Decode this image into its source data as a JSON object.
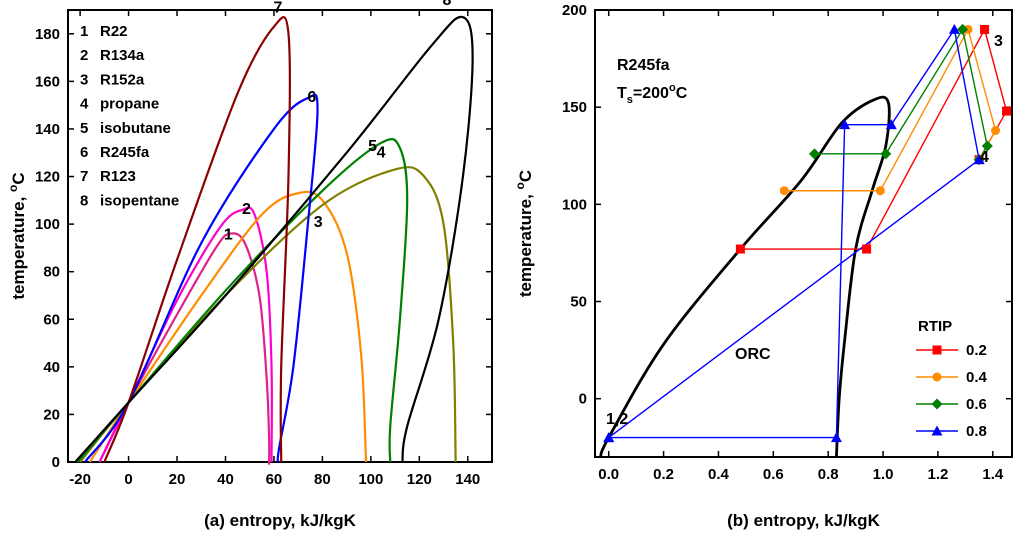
{
  "chart_data": [
    {
      "type": "line",
      "xlabel": "(a) entropy, kJ/kgK",
      "ylabel": "temperature, °C",
      "xlim": [
        -25,
        150
      ],
      "ylim": [
        0,
        190
      ],
      "xticks": [
        -20,
        0,
        20,
        40,
        60,
        80,
        100,
        120,
        140
      ],
      "yticks": [
        0,
        20,
        40,
        60,
        80,
        100,
        120,
        140,
        160,
        180
      ],
      "grid": false,
      "legend": [
        {
          "num": "1",
          "name": "R22"
        },
        {
          "num": "2",
          "name": "R134a"
        },
        {
          "num": "3",
          "name": "R152a"
        },
        {
          "num": "4",
          "name": "propane"
        },
        {
          "num": "5",
          "name": "isobutane"
        },
        {
          "num": "6",
          "name": "R245fa"
        },
        {
          "num": "7",
          "name": "R123"
        },
        {
          "num": "8",
          "name": "isopentane"
        }
      ],
      "series": [
        {
          "label": "1",
          "color": "#e0218a",
          "x": [
            -12,
            0,
            20,
            36,
            42,
            48,
            54,
            57,
            58,
            58,
            58
          ],
          "y": [
            0,
            25,
            62,
            90,
            96,
            92,
            70,
            35,
            10,
            0,
            0
          ]
        },
        {
          "label": "2",
          "color": "#ff00cc",
          "x": [
            -12,
            0,
            20,
            38,
            47,
            52,
            57,
            59,
            59
          ],
          "y": [
            0,
            25,
            68,
            99,
            106,
            104,
            80,
            40,
            0
          ]
        },
        {
          "label": "3",
          "color": "#ff8c00",
          "x": [
            -16,
            0,
            30,
            55,
            70,
            80,
            90,
            96,
            98
          ],
          "y": [
            0,
            25,
            70,
            104,
            113,
            110,
            88,
            45,
            0
          ]
        },
        {
          "label": "4",
          "color": "#808000",
          "x": [
            -20,
            0,
            40,
            80,
            110,
            122,
            130,
            134,
            135
          ],
          "y": [
            0,
            25,
            70,
            108,
            123,
            120,
            100,
            50,
            0
          ]
        },
        {
          "label": "5",
          "color": "#008000",
          "x": [
            -21,
            0,
            40,
            80,
            104,
            112,
            115,
            112,
            108,
            108
          ],
          "y": [
            0,
            25,
            72,
            114,
            134,
            132,
            110,
            60,
            15,
            0
          ]
        },
        {
          "label": "6",
          "color": "#0000ff",
          "x": [
            -18,
            0,
            30,
            60,
            74,
            78,
            74,
            68,
            62,
            62
          ],
          "y": [
            0,
            25,
            92,
            140,
            153,
            148,
            100,
            40,
            5,
            0
          ]
        },
        {
          "label": "7",
          "color": "#8b0000",
          "x": [
            -10,
            0,
            20,
            45,
            60,
            66,
            66,
            63,
            63
          ],
          "y": [
            0,
            25,
            85,
            155,
            183,
            180,
            120,
            40,
            0
          ]
        },
        {
          "label": "8",
          "color": "#000000",
          "x": [
            -22,
            0,
            40,
            90,
            125,
            138,
            142,
            138,
            128,
            115,
            113
          ],
          "y": [
            0,
            25,
            70,
            130,
            175,
            187,
            170,
            120,
            60,
            15,
            0
          ]
        }
      ]
    },
    {
      "type": "line",
      "xlabel": "(b) entropy, kJ/kgK",
      "ylabel": "temperature, °C",
      "xlim": [
        -0.05,
        1.47
      ],
      "ylim": [
        -30,
        200
      ],
      "xticks": [
        0.0,
        0.2,
        0.4,
        0.6,
        0.8,
        1.0,
        1.2,
        1.4
      ],
      "yticks": [
        0,
        50,
        100,
        150,
        200
      ],
      "grid": false,
      "annotations": [
        "R245fa",
        "T",
        "s",
        "=200",
        "o",
        "C",
        "ORC",
        "1,2",
        "3",
        "4"
      ],
      "legend_title": "RTIP",
      "dome": {
        "color": "#000000",
        "x": [
          -0.03,
          0.0,
          0.2,
          0.48,
          0.7,
          0.85,
          0.97,
          1.02,
          1.01,
          0.96,
          0.9,
          0.86,
          0.84,
          0.83
        ],
        "y": [
          -30,
          -20,
          28,
          77,
          112,
          142,
          154,
          152,
          130,
          107,
          77,
          30,
          0,
          -30
        ]
      },
      "series": [
        {
          "name": "0.2",
          "color": "#ff0000",
          "marker": "square",
          "x": [
            0.48,
            0.94,
            1.37,
            1.45,
            1.35
          ],
          "y": [
            77,
            77,
            190,
            148,
            123
          ]
        },
        {
          "name": "0.4",
          "color": "#ff8c00",
          "marker": "circle",
          "x": [
            0.64,
            0.99,
            1.31,
            1.41,
            1.35
          ],
          "y": [
            107,
            107,
            190,
            138,
            123
          ]
        },
        {
          "name": "0.6",
          "color": "#008000",
          "marker": "diamond",
          "x": [
            0.75,
            1.01,
            1.29,
            1.38,
            1.35
          ],
          "y": [
            126,
            126,
            190,
            130,
            123
          ]
        },
        {
          "name": "0.8",
          "color": "#0000ff",
          "marker": "triangle",
          "x": [
            0.0,
            0.83,
            0.86,
            1.03,
            1.26,
            1.35,
            0.0
          ],
          "y": [
            -20,
            -20,
            141,
            141,
            190,
            123,
            -20
          ]
        }
      ]
    }
  ]
}
